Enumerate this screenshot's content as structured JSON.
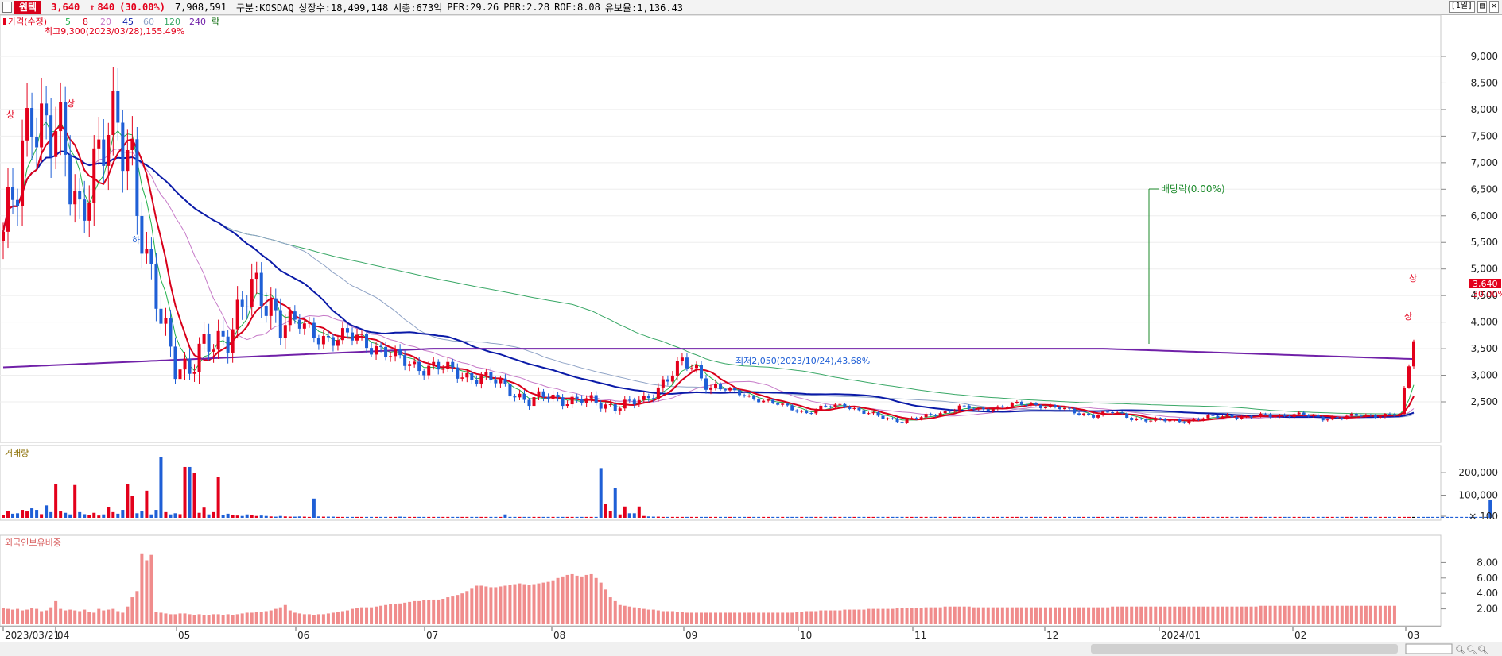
{
  "header": {
    "name": "원텍",
    "price": "3,640",
    "arrow": "↑",
    "change": "840",
    "change_pct": "(30.00%)",
    "volume": "7,908,591",
    "market": "구분:KOSDAQ",
    "shares": "상장수:18,499,148",
    "mcap": "시총:673억",
    "per": "PER:29.26",
    "pbr": "PBR:2.28",
    "roe": "ROE:8.08",
    "float": "유보율:1,136.43",
    "period": "[1일]"
  },
  "colors": {
    "up": "#e3001b",
    "down": "#1f5fd6",
    "ma5": "#22b14c",
    "ma8": "#d8001a",
    "ma20": "#c67ac8",
    "ma45": "#0a1aa8",
    "ma60": "#8fa3c6",
    "ma120": "#3aa867",
    "ma240": "#7020a8",
    "foreign": "#f08c8c"
  },
  "legend": {
    "price": "가격(수정)",
    "ma5": "5",
    "ma8": "8",
    "ma20": "20",
    "ma45": "45",
    "ma60": "60",
    "ma120": "120",
    "ma240": "240",
    "rak": "락"
  },
  "annotations": {
    "high": "최고9,300(2023/03/28),155.49%",
    "low": "최저2,050(2023/10/24),43.68%",
    "dividend": "배당락(0.00%)",
    "limit_up": "상",
    "limit_down": "하",
    "last_price": "3,640",
    "last_pct": "30.00%"
  },
  "chart_data": [
    {
      "type": "candlestick",
      "title": "",
      "series_label": "가격(수정)",
      "ylim": [
        2050,
        9300
      ],
      "yticks": [
        "2,500",
        "3,000",
        "3,500",
        "4,000",
        "4,500",
        "5,000",
        "5,500",
        "6,000",
        "6,500",
        "7,000",
        "7,500",
        "8,000",
        "8,500",
        "9,000"
      ],
      "ytick_values": [
        2500,
        3000,
        3500,
        4000,
        4500,
        5000,
        5500,
        6000,
        6500,
        7000,
        7500,
        8000,
        8500,
        9000
      ],
      "xlabels": [
        "2023/03/21",
        "04",
        "05",
        "06",
        "07",
        "08",
        "09",
        "10",
        "11",
        "12",
        "2024/01",
        "02",
        "03"
      ],
      "close_path": [
        [
          0,
          5700
        ],
        [
          3,
          6300
        ],
        [
          6,
          8200
        ],
        [
          9,
          7900
        ],
        [
          12,
          7200
        ],
        [
          14,
          6500
        ],
        [
          16,
          6100
        ],
        [
          18,
          7000
        ],
        [
          21,
          7200
        ],
        [
          24,
          7500
        ],
        [
          27,
          7300
        ],
        [
          30,
          5100
        ],
        [
          33,
          3900
        ],
        [
          36,
          3300
        ],
        [
          39,
          3200
        ],
        [
          42,
          3400
        ],
        [
          45,
          3600
        ],
        [
          48,
          4100
        ],
        [
          51,
          4450
        ],
        [
          54,
          4400
        ],
        [
          57,
          4300
        ],
        [
          60,
          4050
        ],
        [
          63,
          3850
        ],
        [
          66,
          3750
        ],
        [
          70,
          3700
        ],
        [
          74,
          3700
        ],
        [
          78,
          3550
        ],
        [
          82,
          3300
        ],
        [
          86,
          3200
        ],
        [
          90,
          3150
        ],
        [
          95,
          3050
        ],
        [
          100,
          2950
        ],
        [
          105,
          2800
        ],
        [
          110,
          2500
        ],
        [
          114,
          2600
        ],
        [
          118,
          2550
        ],
        [
          122,
          2500
        ],
        [
          126,
          2450
        ],
        [
          130,
          2450
        ],
        [
          134,
          2500
        ],
        [
          138,
          2900
        ],
        [
          142,
          3200
        ],
        [
          145,
          3100
        ],
        [
          148,
          2800
        ],
        [
          152,
          2700
        ],
        [
          156,
          2600
        ],
        [
          160,
          2500
        ],
        [
          164,
          2400
        ],
        [
          168,
          2300
        ],
        [
          172,
          2400
        ],
        [
          176,
          2450
        ],
        [
          180,
          2300
        ],
        [
          184,
          2200
        ],
        [
          188,
          2150
        ],
        [
          192,
          2200
        ],
        [
          196,
          2300
        ],
        [
          200,
          2400
        ],
        [
          204,
          2350
        ],
        [
          208,
          2400
        ],
        [
          212,
          2450
        ],
        [
          216,
          2450
        ],
        [
          220,
          2400
        ],
        [
          224,
          2300
        ],
        [
          228,
          2250
        ],
        [
          232,
          2300
        ],
        [
          236,
          2200
        ],
        [
          240,
          2150
        ],
        [
          244,
          2150
        ],
        [
          248,
          2150
        ],
        [
          252,
          2200
        ],
        [
          256,
          2250
        ],
        [
          260,
          2200
        ],
        [
          264,
          2250
        ],
        [
          268,
          2250
        ],
        [
          272,
          2250
        ],
        [
          276,
          2200
        ],
        [
          280,
          2200
        ],
        [
          284,
          2250
        ],
        [
          288,
          2250
        ],
        [
          292,
          2250
        ],
        [
          295,
          3640
        ]
      ]
    },
    {
      "type": "bar",
      "series_label": "거래량",
      "yticks": [
        "× 100",
        "100,000",
        "200,000"
      ],
      "ytick_values": [
        0,
        100000,
        200000
      ],
      "ylim": [
        0,
        260000
      ],
      "values": [
        12000,
        30000,
        18000,
        20000,
        35000,
        28000,
        42000,
        35000,
        16000,
        55000,
        25000,
        150000,
        28000,
        22000,
        15000,
        145000,
        25000,
        16000,
        12000,
        22000,
        10000,
        15000,
        48000,
        25000,
        18000,
        35000,
        150000,
        95000,
        20000,
        30000,
        120000,
        15000,
        35000,
        270000,
        25000,
        15000,
        20000,
        16000,
        225000,
        225000,
        200000,
        22000,
        45000,
        15000,
        25000,
        180000,
        12000,
        18000,
        12000,
        10000,
        8000,
        15000,
        12000,
        8000,
        10000,
        8000,
        6000,
        5000,
        8000,
        6000,
        5000,
        5000,
        6000,
        5000,
        4000,
        85000,
        6000,
        5000,
        5000,
        5000,
        4000,
        4000,
        4000,
        4000,
        4000,
        4000,
        4000,
        4000,
        4000,
        4000,
        4000,
        4000,
        4000,
        5000,
        4000,
        4000,
        4000,
        4000,
        4000,
        4000,
        4000,
        4000,
        4000,
        4000,
        4000,
        4000,
        4000,
        4000,
        4000,
        4000,
        4000,
        4000,
        4000,
        4000,
        4000,
        15000,
        4000,
        4000,
        4000,
        4000,
        4000,
        4000,
        4000,
        4000,
        4000,
        4000,
        4000,
        4000,
        4000,
        4000,
        4000,
        4000,
        4000,
        4000,
        4000,
        220000,
        60000,
        30000,
        130000,
        15000,
        50000,
        20000,
        20000,
        50000,
        8000,
        6000,
        5000,
        5000,
        4000,
        4000,
        4000,
        4000,
        4000,
        4000,
        4000,
        4000,
        4000,
        4000,
        4000,
        4000,
        4000,
        4000,
        4000,
        4000,
        4000,
        4000,
        4000,
        4000,
        4000,
        4000,
        4000,
        4000,
        4000,
        4000,
        4000,
        4000,
        4000,
        4000,
        4000,
        4000,
        4000,
        4000,
        4000,
        4000,
        4000,
        4000,
        4000,
        4000,
        4000,
        4000,
        4000,
        4000,
        4000,
        4000,
        4000,
        4000,
        4000,
        4000,
        4000,
        4000,
        4000,
        4000,
        4000,
        4000,
        4000,
        4000,
        4000,
        4000,
        4000,
        4000,
        4000,
        4000,
        4000,
        4000,
        4000,
        4000,
        4000,
        4000,
        4000,
        4000,
        4000,
        4000,
        4000,
        4000,
        4000,
        4000,
        4000,
        4000,
        4000,
        4000,
        4000,
        4000,
        4000,
        4000,
        4000,
        4000,
        4000,
        4000,
        4000,
        4000,
        4000,
        4000,
        4000,
        4000,
        4000,
        4000,
        4000,
        4000,
        4000,
        4000,
        4000,
        4000,
        4000,
        4000,
        4000,
        4000,
        4000,
        4000,
        4000,
        4000,
        4000,
        4000,
        4000,
        4000,
        4000,
        4000,
        4000,
        4000,
        4000,
        4000,
        4000,
        4000,
        4000,
        4000,
        4000,
        4000,
        4000,
        4000,
        4000,
        4000,
        4000,
        4000,
        4000,
        4000,
        4000,
        4000,
        4000,
        4000,
        4000,
        4000,
        4000,
        4000,
        4000,
        4000,
        4000,
        4000,
        4000,
        4000,
        4000,
        4000,
        4000,
        4000,
        4000,
        4000,
        4000,
        4000,
        4000,
        4000,
        4000,
        4000,
        4000,
        4000,
        4000,
        4000,
        4000,
        4000,
        4000,
        4000,
        4000,
        4000,
        4000,
        80000
      ]
    },
    {
      "type": "bar",
      "series_label": "외국인보유비중",
      "yticks": [
        "2.00",
        "4.00",
        "6.00",
        "8.00"
      ],
      "ytick_values": [
        2,
        4,
        6,
        8
      ],
      "ylim": [
        0,
        10
      ],
      "values": [
        2.1,
        2.0,
        1.9,
        2.0,
        1.8,
        1.9,
        2.1,
        2.0,
        1.7,
        1.8,
        2.2,
        3.0,
        2.0,
        1.8,
        1.9,
        1.8,
        1.7,
        1.9,
        1.6,
        1.5,
        2.0,
        1.8,
        1.9,
        2.0,
        1.7,
        1.5,
        2.3,
        3.5,
        4.3,
        9.2,
        8.3,
        9.0,
        1.6,
        1.5,
        1.4,
        1.3,
        1.3,
        1.4,
        1.4,
        1.3,
        1.2,
        1.3,
        1.2,
        1.2,
        1.3,
        1.3,
        1.2,
        1.3,
        1.2,
        1.3,
        1.4,
        1.5,
        1.5,
        1.6,
        1.6,
        1.7,
        1.8,
        2.0,
        2.2,
        2.5,
        1.8,
        1.5,
        1.4,
        1.3,
        1.3,
        1.2,
        1.3,
        1.3,
        1.4,
        1.5,
        1.6,
        1.7,
        1.8,
        2.0,
        2.1,
        2.2,
        2.2,
        2.2,
        2.3,
        2.4,
        2.5,
        2.6,
        2.6,
        2.7,
        2.8,
        2.9,
        3.0,
        3.0,
        3.1,
        3.1,
        3.2,
        3.2,
        3.3,
        3.5,
        3.6,
        3.8,
        4.0,
        4.3,
        4.6,
        5.0,
        5.0,
        4.9,
        4.8,
        4.8,
        4.9,
        5.0,
        5.1,
        5.2,
        5.3,
        5.2,
        5.1,
        5.2,
        5.3,
        5.4,
        5.5,
        5.7,
        6.0,
        6.2,
        6.4,
        6.5,
        6.3,
        6.2,
        6.4,
        6.5,
        6.0,
        5.4,
        4.5,
        3.5,
        3.0,
        2.5,
        2.4,
        2.3,
        2.2,
        2.1,
        2.0,
        1.9,
        1.9,
        1.8,
        1.7,
        1.7,
        1.7,
        1.6,
        1.6,
        1.5,
        1.5,
        1.5,
        1.5,
        1.5,
        1.5,
        1.5,
        1.5,
        1.5,
        1.5,
        1.5,
        1.5,
        1.5,
        1.5,
        1.5,
        1.5,
        1.5,
        1.5,
        1.5,
        1.5,
        1.5,
        1.5,
        1.5,
        1.6,
        1.6,
        1.7,
        1.7,
        1.7,
        1.8,
        1.8,
        1.8,
        1.8,
        1.8,
        1.9,
        1.9,
        1.9,
        1.9,
        1.9,
        2.0,
        2.0,
        2.0,
        2.0,
        2.0,
        2.0,
        2.1,
        2.1,
        2.1,
        2.1,
        2.1,
        2.1,
        2.2,
        2.2,
        2.2,
        2.2,
        2.3,
        2.3,
        2.3,
        2.3,
        2.3,
        2.3,
        2.2,
        2.2,
        2.2,
        2.2,
        2.2,
        2.2,
        2.2,
        2.2,
        2.2,
        2.2,
        2.2,
        2.2,
        2.2,
        2.2,
        2.2,
        2.2,
        2.2,
        2.2,
        2.2,
        2.2,
        2.2,
        2.2,
        2.2,
        2.2,
        2.2,
        2.2,
        2.2,
        2.2,
        2.2,
        2.3,
        2.3,
        2.3,
        2.3,
        2.3,
        2.3,
        2.3,
        2.3,
        2.3,
        2.3,
        2.3,
        2.3,
        2.3,
        2.3,
        2.3,
        2.3,
        2.3,
        2.3,
        2.3,
        2.3,
        2.3,
        2.3,
        2.3,
        2.3,
        2.3,
        2.3,
        2.3,
        2.3,
        2.3,
        2.3,
        2.3,
        2.4,
        2.4,
        2.4,
        2.4,
        2.4,
        2.4,
        2.4,
        2.4,
        2.4,
        2.4,
        2.4,
        2.4,
        2.4,
        2.4,
        2.4,
        2.4,
        2.4,
        2.4,
        2.4,
        2.4,
        2.4,
        2.4,
        2.4,
        2.4,
        2.4,
        2.4,
        2.4,
        2.4,
        2.4
      ]
    }
  ]
}
